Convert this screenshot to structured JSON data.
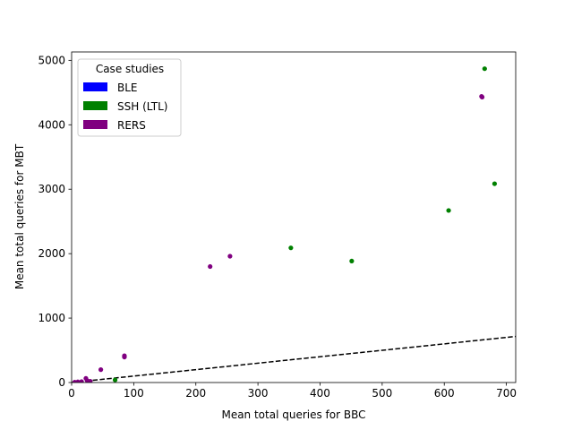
{
  "chart_data": {
    "type": "scatter",
    "title": "",
    "xlabel": "Mean total queries for BBC",
    "ylabel": "Mean total queries for MBT",
    "xlim": [
      0,
      715
    ],
    "ylim": [
      0,
      5130
    ],
    "xticks": [
      0,
      100,
      200,
      300,
      400,
      500,
      600,
      700
    ],
    "yticks": [
      0,
      1000,
      2000,
      3000,
      4000,
      5000
    ],
    "grid": false,
    "legend": {
      "title": "Case studies",
      "placement": "top-left",
      "entries": [
        {
          "label": "BLE",
          "color": "#0000ff"
        },
        {
          "label": "SSH (LTL)",
          "color": "#008000"
        },
        {
          "label": "RERS",
          "color": "#800080"
        }
      ]
    },
    "reference_line": {
      "style": "dashed",
      "color": "#000000",
      "slope": 1
    },
    "series": [
      {
        "name": "BLE",
        "color": "#0000ff",
        "points": []
      },
      {
        "name": "SSH (LTL)",
        "color": "#008000",
        "points": [
          {
            "x": 70,
            "y": 40
          },
          {
            "x": 353,
            "y": 2090
          },
          {
            "x": 451,
            "y": 1885
          },
          {
            "x": 607,
            "y": 2670
          },
          {
            "x": 665,
            "y": 4870
          },
          {
            "x": 681,
            "y": 3085
          }
        ]
      },
      {
        "name": "RERS",
        "color": "#800080",
        "points": [
          {
            "x": 5,
            "y": 5
          },
          {
            "x": 10,
            "y": 10
          },
          {
            "x": 16,
            "y": 15
          },
          {
            "x": 23,
            "y": 65
          },
          {
            "x": 25,
            "y": 30
          },
          {
            "x": 30,
            "y": 20
          },
          {
            "x": 47,
            "y": 200
          },
          {
            "x": 85,
            "y": 395
          },
          {
            "x": 85,
            "y": 415
          },
          {
            "x": 223,
            "y": 1800
          },
          {
            "x": 255,
            "y": 1960
          },
          {
            "x": 660,
            "y": 4440
          },
          {
            "x": 661,
            "y": 4430
          }
        ]
      }
    ]
  }
}
